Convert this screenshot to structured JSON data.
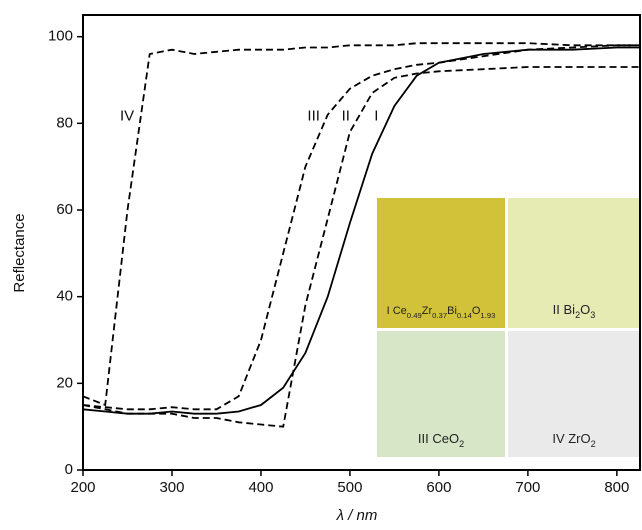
{
  "chart_data": {
    "type": "line",
    "x_label": "λ / nm",
    "y_label": "Reflectance",
    "x": [
      200,
      225,
      250,
      275,
      300,
      325,
      350,
      375,
      400,
      425,
      450,
      475,
      500,
      525,
      550,
      575,
      600,
      650,
      700,
      750,
      800,
      825
    ],
    "series": [
      {
        "name": "I",
        "color": "#000000",
        "style": "solid",
        "values": [
          14,
          13.5,
          13,
          13,
          13.5,
          13,
          13,
          13.5,
          15,
          19,
          27,
          40,
          57,
          73,
          84,
          91,
          94,
          96,
          97,
          97,
          97.5,
          97.5
        ]
      },
      {
        "name": "II",
        "color": "#000000",
        "style": "dashed",
        "values": [
          15,
          14,
          13,
          13,
          13,
          12,
          12,
          11,
          10.5,
          10,
          38,
          58,
          78,
          87,
          90.5,
          91.5,
          92,
          92.5,
          93,
          93,
          93,
          93
        ]
      },
      {
        "name": "III",
        "color": "#000000",
        "style": "dashed",
        "values": [
          15,
          14.5,
          14,
          14,
          14.5,
          14,
          14,
          17,
          30,
          50,
          70,
          82,
          88,
          91,
          92.5,
          93.5,
          94,
          95.5,
          97,
          97.5,
          98,
          98
        ]
      },
      {
        "name": "IV",
        "color": "#000000",
        "style": "dashed",
        "values": [
          17,
          15,
          60,
          96,
          97,
          96,
          96.5,
          97,
          97,
          97,
          97.5,
          97.5,
          98,
          98,
          98,
          98.5,
          98.5,
          98.5,
          98.5,
          98,
          98,
          98
        ]
      }
    ],
    "xlim": [
      200,
      826
    ],
    "ylim": [
      0,
      105
    ],
    "xticks": [
      200,
      300,
      400,
      500,
      600,
      700,
      800
    ],
    "yticks": [
      0,
      20,
      40,
      60,
      80,
      100
    ],
    "inset_labels": [
      [
        "I Ce",
        "0.49",
        "Zr",
        "0.37",
        "Bi",
        "0.14",
        "O",
        "1.93"
      ],
      [
        "II Bi",
        "2",
        "O",
        "3"
      ],
      [
        "III CeO",
        "2"
      ],
      [
        "IV ZrO",
        "2"
      ]
    ]
  }
}
